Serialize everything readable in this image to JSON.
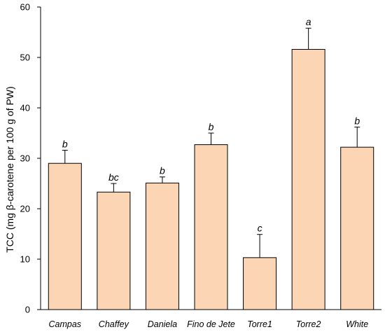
{
  "chart_data": {
    "type": "bar",
    "title": "",
    "xlabel": "",
    "ylabel": "TCC (mg β-carotene per 100 g of PW)",
    "ylim": [
      0,
      60
    ],
    "yticks": [
      0,
      10,
      20,
      30,
      40,
      50,
      60
    ],
    "grid": false,
    "categories": [
      "Campas",
      "Chaffey",
      "Daniela",
      "Fino de Jete",
      "Torre1",
      "Torre2",
      "White"
    ],
    "values": [
      29.0,
      23.3,
      25.1,
      32.7,
      10.3,
      51.6,
      32.2
    ],
    "errors": [
      2.6,
      1.7,
      1.2,
      2.3,
      4.6,
      4.2,
      4.0
    ],
    "significance": [
      "b",
      "bc",
      "b",
      "b",
      "c",
      "a",
      "b"
    ],
    "colors": {
      "bar_fill": "#FCD5B5",
      "bar_stroke": "#000000"
    }
  }
}
